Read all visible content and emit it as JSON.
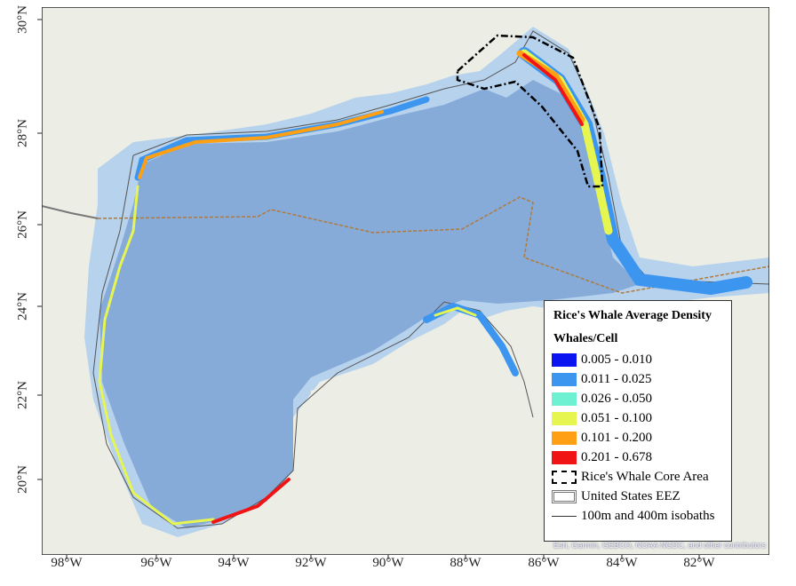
{
  "legend": {
    "title": "Rice's Whale Average Density",
    "subtitle": "Whales/Cell",
    "classes": [
      {
        "label": "0.005 - 0.010",
        "color": "#0a14f0"
      },
      {
        "label": "0.011 - 0.025",
        "color": "#3c96f0"
      },
      {
        "label": "0.026 - 0.050",
        "color": "#6ef0d2"
      },
      {
        "label": "0.051 - 0.100",
        "color": "#e6f550"
      },
      {
        "label": "0.101 - 0.200",
        "color": "#ffa014"
      },
      {
        "label": "0.201 - 0.678",
        "color": "#f01414"
      }
    ],
    "core_area": "Rice's Whale Core Area",
    "eez": "United States EEZ",
    "isobaths": "100m and 400m isobaths"
  },
  "axes": {
    "longitude": [
      "98°W",
      "96°W",
      "94°W",
      "92°W",
      "90°W",
      "88°W",
      "86°W",
      "84°W",
      "82°W"
    ],
    "latitude": [
      "30°N",
      "28°N",
      "26°N",
      "24°N",
      "22°N",
      "20°N"
    ]
  },
  "attribution": "Esri, Garmin, GEBCO, NOAA NGDC, and other contributors",
  "colors": {
    "land": "#eceee6",
    "shelf": "#b7d2ec",
    "deep": "#86abd9",
    "eez": "#b07a3c"
  }
}
